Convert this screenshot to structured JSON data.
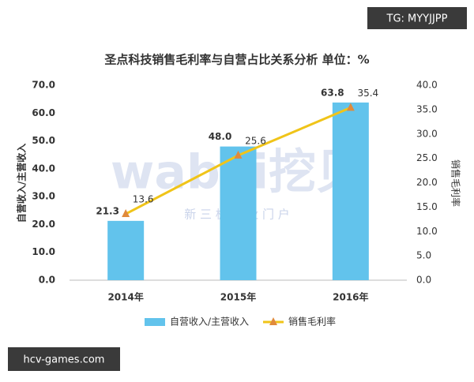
{
  "chart_data": {
    "type": "bar",
    "title": "圣点科技销售毛利率与自营占比关系分析  单位：%",
    "categories": [
      "2014年",
      "2015年",
      "2016年"
    ],
    "ylabel": "自营收入/主营收入",
    "y2label": "销售毛利率",
    "ylim": [
      0,
      70
    ],
    "yticks": [
      {
        "value": 0,
        "label": "0.0"
      },
      {
        "value": 10,
        "label": "10.0"
      },
      {
        "value": 20,
        "label": "20.0"
      },
      {
        "value": 30,
        "label": "30.0"
      },
      {
        "value": 40,
        "label": "40.0"
      },
      {
        "value": 50,
        "label": "50.0"
      },
      {
        "value": 60,
        "label": "60.0"
      },
      {
        "value": 70,
        "label": "70.0"
      }
    ],
    "y2lim": [
      0,
      40
    ],
    "y2ticks": [
      {
        "value": 0,
        "label": "0.0"
      },
      {
        "value": 5,
        "label": "5.0"
      },
      {
        "value": 10,
        "label": "10.0"
      },
      {
        "value": 15,
        "label": "15.0"
      },
      {
        "value": 20,
        "label": "20.0"
      },
      {
        "value": 25,
        "label": "25.0"
      },
      {
        "value": 30,
        "label": "30.0"
      },
      {
        "value": 35,
        "label": "35.0"
      },
      {
        "value": 40,
        "label": "40.0"
      }
    ],
    "grid": false,
    "series": [
      {
        "name": "自营收入/主营收入",
        "type": "bar",
        "color": "#62c3ec",
        "values": [
          21.3,
          48.0,
          63.8
        ],
        "value_labels": [
          "21.3",
          "48.0",
          "63.8"
        ]
      },
      {
        "name": "销售毛利率",
        "type": "line",
        "axis": "y2",
        "color": "#f0c419",
        "marker_color": "#e08a3c",
        "values": [
          13.6,
          25.6,
          35.4
        ]
      }
    ]
  },
  "watermark": {
    "text": "wabei挖贝",
    "subtext": "新 三 板 专 业 门 户"
  },
  "overlays": [
    "TG: MYYJJPP",
    "hcv-games.com"
  ]
}
